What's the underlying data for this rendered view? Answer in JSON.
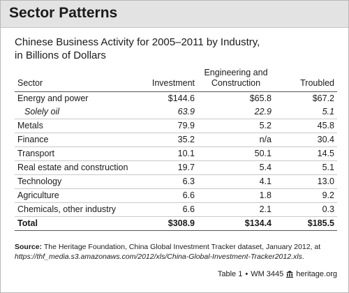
{
  "header": {
    "title": "Sector Patterns"
  },
  "subtitle": {
    "line1": "Chinese Business Activity for 2005–2011 by Industry,",
    "line2": "in Billions of Dollars"
  },
  "table": {
    "columns": {
      "sector": "Sector",
      "investment": "Investment",
      "engineering_line1": "Engineering and",
      "engineering_line2": "Construction",
      "troubled": "Troubled"
    },
    "rows": [
      {
        "sector": "Energy and power",
        "investment": "$144.6",
        "engineering": "$65.8",
        "troubled": "$67.2"
      },
      {
        "sector": "Solely oil",
        "investment": "63.9",
        "engineering": "22.9",
        "troubled": "5.1"
      },
      {
        "sector": "Metals",
        "investment": "79.9",
        "engineering": "5.2",
        "troubled": "45.8"
      },
      {
        "sector": "Finance",
        "investment": "35.2",
        "engineering": "n/a",
        "troubled": "30.4"
      },
      {
        "sector": "Transport",
        "investment": "10.1",
        "engineering": "50.1",
        "troubled": "14.5"
      },
      {
        "sector": "Real estate and construction",
        "investment": "19.7",
        "engineering": "5.4",
        "troubled": "5.1"
      },
      {
        "sector": "Technology",
        "investment": "6.3",
        "engineering": "4.1",
        "troubled": "13.0"
      },
      {
        "sector": "Agriculture",
        "investment": "6.6",
        "engineering": "1.8",
        "troubled": "9.2"
      },
      {
        "sector": "Chemicals, other industry",
        "investment": "6.6",
        "engineering": "2.1",
        "troubled": "0.3"
      }
    ],
    "total": {
      "sector": "Total",
      "investment": "$308.9",
      "engineering": "$134.4",
      "troubled": "$185.5"
    }
  },
  "source": {
    "label": "Source:",
    "text": " The Heritage Foundation, China Global Investment Tracker dataset, January 2012, at ",
    "url": "https://thf_media.s3.amazonaws.com/2012/xls/China-Global-Investment-Tracker2012.xls",
    "end": "."
  },
  "footer": {
    "table_ref": "Table 1",
    "sep": "•",
    "wm": "WM 3445",
    "site": "heritage.org"
  },
  "colors": {
    "header_bg": "#e3e3e3",
    "frame_border": "#b8b8b8",
    "rule": "#555555"
  },
  "icons": {
    "footer_logo": "heritage-logo-icon"
  }
}
